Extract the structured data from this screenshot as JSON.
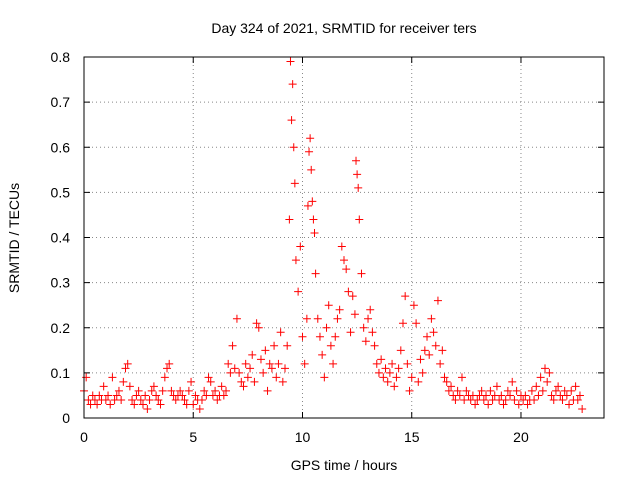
{
  "chart_data": {
    "type": "scatter",
    "title": "Day 324 of 2021, SRMTID for receiver ters",
    "xlabel": "GPS time / hours",
    "ylabel": "SRMTID / TECUs",
    "xlim": [
      0,
      23.8
    ],
    "ylim": [
      0,
      0.8
    ],
    "x_ticks": [
      0,
      5,
      10,
      15,
      20
    ],
    "x_tick_labels": [
      "0",
      "5",
      "10",
      "15",
      "20"
    ],
    "y_ticks": [
      0,
      0.1,
      0.2,
      0.3,
      0.4,
      0.5,
      0.6,
      0.7,
      0.8
    ],
    "y_tick_labels": [
      "0",
      "0.1",
      "0.2",
      "0.3",
      "0.4",
      "0.5",
      "0.6",
      "0.7",
      "0.8"
    ],
    "grid": true,
    "marker": "+",
    "series_color": "#ff0000",
    "series": [
      {
        "name": "SRMTID",
        "points": [
          [
            0.0,
            0.06
          ],
          [
            0.1,
            0.09
          ],
          [
            0.2,
            0.04
          ],
          [
            0.3,
            0.03
          ],
          [
            0.4,
            0.05
          ],
          [
            0.5,
            0.04
          ],
          [
            0.6,
            0.03
          ],
          [
            0.7,
            0.05
          ],
          [
            0.8,
            0.04
          ],
          [
            0.9,
            0.07
          ],
          [
            1.0,
            0.04
          ],
          [
            1.1,
            0.05
          ],
          [
            1.2,
            0.03
          ],
          [
            1.3,
            0.09
          ],
          [
            1.4,
            0.04
          ],
          [
            1.5,
            0.05
          ],
          [
            1.6,
            0.06
          ],
          [
            1.7,
            0.04
          ],
          [
            1.8,
            0.08
          ],
          [
            1.9,
            0.11
          ],
          [
            2.0,
            0.12
          ],
          [
            2.1,
            0.07
          ],
          [
            2.2,
            0.04
          ],
          [
            2.3,
            0.03
          ],
          [
            2.4,
            0.05
          ],
          [
            2.5,
            0.06
          ],
          [
            2.6,
            0.04
          ],
          [
            2.7,
            0.03
          ],
          [
            2.8,
            0.05
          ],
          [
            2.9,
            0.02
          ],
          [
            3.0,
            0.04
          ],
          [
            3.1,
            0.06
          ],
          [
            3.2,
            0.07
          ],
          [
            3.3,
            0.05
          ],
          [
            3.4,
            0.04
          ],
          [
            3.5,
            0.03
          ],
          [
            3.6,
            0.06
          ],
          [
            3.7,
            0.09
          ],
          [
            3.8,
            0.11
          ],
          [
            3.9,
            0.12
          ],
          [
            4.0,
            0.06
          ],
          [
            4.1,
            0.05
          ],
          [
            4.2,
            0.04
          ],
          [
            4.3,
            0.05
          ],
          [
            4.4,
            0.06
          ],
          [
            4.5,
            0.05
          ],
          [
            4.6,
            0.04
          ],
          [
            4.7,
            0.03
          ],
          [
            4.8,
            0.06
          ],
          [
            4.9,
            0.08
          ],
          [
            5.0,
            0.03
          ],
          [
            5.1,
            0.05
          ],
          [
            5.2,
            0.04
          ],
          [
            5.3,
            0.02
          ],
          [
            5.4,
            0.04
          ],
          [
            5.5,
            0.06
          ],
          [
            5.6,
            0.05
          ],
          [
            5.7,
            0.09
          ],
          [
            5.8,
            0.08
          ],
          [
            5.9,
            0.05
          ],
          [
            6.0,
            0.06
          ],
          [
            6.1,
            0.04
          ],
          [
            6.2,
            0.05
          ],
          [
            6.3,
            0.07
          ],
          [
            6.4,
            0.05
          ],
          [
            6.5,
            0.06
          ],
          [
            6.6,
            0.12
          ],
          [
            6.7,
            0.1
          ],
          [
            6.8,
            0.16
          ],
          [
            6.9,
            0.11
          ],
          [
            7.0,
            0.22
          ],
          [
            7.1,
            0.1
          ],
          [
            7.2,
            0.08
          ],
          [
            7.3,
            0.07
          ],
          [
            7.4,
            0.12
          ],
          [
            7.5,
            0.09
          ],
          [
            7.6,
            0.11
          ],
          [
            7.7,
            0.14
          ],
          [
            7.8,
            0.08
          ],
          [
            7.9,
            0.21
          ],
          [
            8.0,
            0.2
          ],
          [
            8.1,
            0.13
          ],
          [
            8.2,
            0.1
          ],
          [
            8.3,
            0.15
          ],
          [
            8.4,
            0.06
          ],
          [
            8.5,
            0.12
          ],
          [
            8.6,
            0.11
          ],
          [
            8.7,
            0.16
          ],
          [
            8.8,
            0.09
          ],
          [
            8.9,
            0.12
          ],
          [
            9.0,
            0.19
          ],
          [
            9.1,
            0.08
          ],
          [
            9.2,
            0.11
          ],
          [
            9.3,
            0.16
          ],
          [
            9.4,
            0.44
          ],
          [
            9.45,
            0.79
          ],
          [
            9.5,
            0.66
          ],
          [
            9.55,
            0.74
          ],
          [
            9.6,
            0.6
          ],
          [
            9.65,
            0.52
          ],
          [
            9.7,
            0.35
          ],
          [
            9.8,
            0.28
          ],
          [
            9.9,
            0.38
          ],
          [
            10.0,
            0.18
          ],
          [
            10.1,
            0.12
          ],
          [
            10.2,
            0.22
          ],
          [
            10.25,
            0.47
          ],
          [
            10.3,
            0.59
          ],
          [
            10.35,
            0.62
          ],
          [
            10.4,
            0.55
          ],
          [
            10.45,
            0.48
          ],
          [
            10.5,
            0.44
          ],
          [
            10.55,
            0.41
          ],
          [
            10.6,
            0.32
          ],
          [
            10.7,
            0.22
          ],
          [
            10.8,
            0.18
          ],
          [
            10.9,
            0.14
          ],
          [
            11.0,
            0.09
          ],
          [
            11.1,
            0.2
          ],
          [
            11.2,
            0.25
          ],
          [
            11.3,
            0.16
          ],
          [
            11.4,
            0.12
          ],
          [
            11.5,
            0.18
          ],
          [
            11.6,
            0.22
          ],
          [
            11.7,
            0.24
          ],
          [
            11.8,
            0.38
          ],
          [
            11.9,
            0.35
          ],
          [
            12.0,
            0.33
          ],
          [
            12.1,
            0.28
          ],
          [
            12.2,
            0.19
          ],
          [
            12.3,
            0.27
          ],
          [
            12.4,
            0.23
          ],
          [
            12.45,
            0.57
          ],
          [
            12.5,
            0.54
          ],
          [
            12.55,
            0.51
          ],
          [
            12.6,
            0.44
          ],
          [
            12.7,
            0.32
          ],
          [
            12.8,
            0.2
          ],
          [
            12.9,
            0.17
          ],
          [
            13.0,
            0.22
          ],
          [
            13.1,
            0.24
          ],
          [
            13.2,
            0.19
          ],
          [
            13.3,
            0.16
          ],
          [
            13.4,
            0.12
          ],
          [
            13.5,
            0.1
          ],
          [
            13.6,
            0.13
          ],
          [
            13.7,
            0.09
          ],
          [
            13.8,
            0.11
          ],
          [
            13.9,
            0.08
          ],
          [
            14.0,
            0.1
          ],
          [
            14.1,
            0.12
          ],
          [
            14.2,
            0.07
          ],
          [
            14.3,
            0.09
          ],
          [
            14.4,
            0.11
          ],
          [
            14.5,
            0.15
          ],
          [
            14.6,
            0.21
          ],
          [
            14.7,
            0.27
          ],
          [
            14.8,
            0.12
          ],
          [
            14.9,
            0.06
          ],
          [
            15.0,
            0.09
          ],
          [
            15.1,
            0.25
          ],
          [
            15.2,
            0.21
          ],
          [
            15.3,
            0.08
          ],
          [
            15.4,
            0.13
          ],
          [
            15.5,
            0.1
          ],
          [
            15.6,
            0.15
          ],
          [
            15.7,
            0.18
          ],
          [
            15.8,
            0.14
          ],
          [
            15.9,
            0.22
          ],
          [
            16.0,
            0.19
          ],
          [
            16.1,
            0.16
          ],
          [
            16.2,
            0.26
          ],
          [
            16.3,
            0.12
          ],
          [
            16.4,
            0.15
          ],
          [
            16.5,
            0.09
          ],
          [
            16.6,
            0.08
          ],
          [
            16.7,
            0.06
          ],
          [
            16.8,
            0.07
          ],
          [
            16.9,
            0.05
          ],
          [
            17.0,
            0.04
          ],
          [
            17.1,
            0.06
          ],
          [
            17.2,
            0.05
          ],
          [
            17.3,
            0.09
          ],
          [
            17.4,
            0.04
          ],
          [
            17.5,
            0.06
          ],
          [
            17.6,
            0.05
          ],
          [
            17.7,
            0.04
          ],
          [
            17.8,
            0.05
          ],
          [
            17.9,
            0.03
          ],
          [
            18.0,
            0.04
          ],
          [
            18.1,
            0.05
          ],
          [
            18.2,
            0.06
          ],
          [
            18.3,
            0.04
          ],
          [
            18.4,
            0.05
          ],
          [
            18.5,
            0.03
          ],
          [
            18.6,
            0.06
          ],
          [
            18.7,
            0.04
          ],
          [
            18.8,
            0.05
          ],
          [
            18.9,
            0.07
          ],
          [
            19.0,
            0.04
          ],
          [
            19.1,
            0.05
          ],
          [
            19.2,
            0.03
          ],
          [
            19.3,
            0.04
          ],
          [
            19.4,
            0.06
          ],
          [
            19.5,
            0.05
          ],
          [
            19.6,
            0.08
          ],
          [
            19.7,
            0.04
          ],
          [
            19.8,
            0.06
          ],
          [
            19.9,
            0.03
          ],
          [
            20.0,
            0.05
          ],
          [
            20.1,
            0.04
          ],
          [
            20.2,
            0.05
          ],
          [
            20.3,
            0.03
          ],
          [
            20.4,
            0.04
          ],
          [
            20.5,
            0.06
          ],
          [
            20.6,
            0.04
          ],
          [
            20.7,
            0.07
          ],
          [
            20.8,
            0.05
          ],
          [
            20.9,
            0.09
          ],
          [
            21.0,
            0.06
          ],
          [
            21.1,
            0.11
          ],
          [
            21.2,
            0.08
          ],
          [
            21.3,
            0.1
          ],
          [
            21.4,
            0.05
          ],
          [
            21.5,
            0.04
          ],
          [
            21.6,
            0.06
          ],
          [
            21.7,
            0.07
          ],
          [
            21.8,
            0.05
          ],
          [
            21.9,
            0.04
          ],
          [
            22.0,
            0.06
          ],
          [
            22.1,
            0.05
          ],
          [
            22.2,
            0.03
          ],
          [
            22.3,
            0.06
          ],
          [
            22.4,
            0.04
          ],
          [
            22.5,
            0.07
          ],
          [
            22.6,
            0.04
          ],
          [
            22.7,
            0.05
          ],
          [
            22.8,
            0.02
          ]
        ]
      }
    ]
  }
}
